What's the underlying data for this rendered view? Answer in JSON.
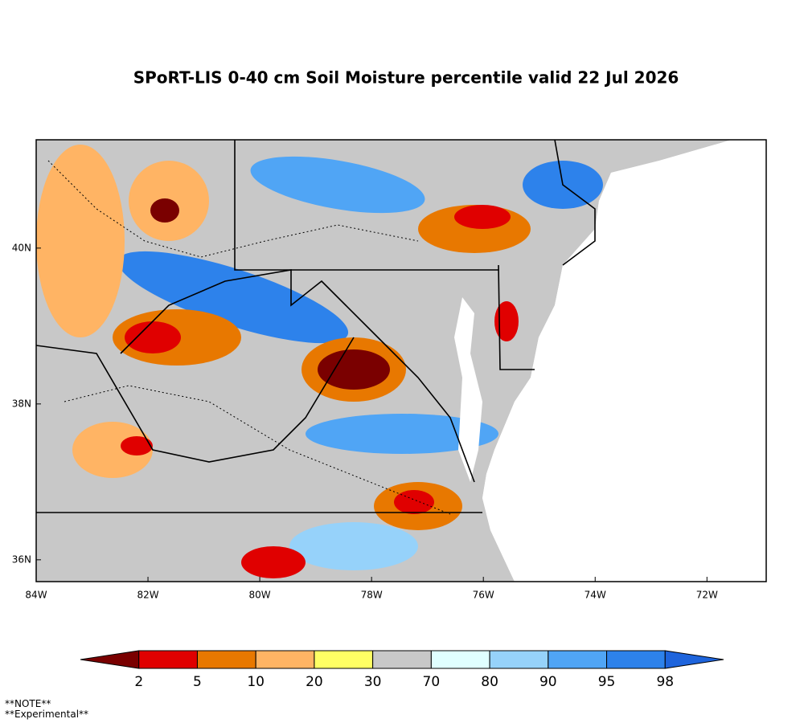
{
  "title": "SPoRT-LIS 0-40 cm Soil Moisture percentile valid 22 Jul 2026",
  "map": {
    "xlim": [
      -84,
      -70.94
    ],
    "ylim": [
      35.72,
      41.39
    ],
    "xticks": [
      {
        "value": -84,
        "label": "84W"
      },
      {
        "value": -82,
        "label": "82W"
      },
      {
        "value": -80,
        "label": "80W"
      },
      {
        "value": -78,
        "label": "78W"
      },
      {
        "value": -76,
        "label": "76W"
      },
      {
        "value": -74,
        "label": "74W"
      },
      {
        "value": -72,
        "label": "72W"
      }
    ],
    "yticks": [
      {
        "value": 36,
        "label": "36N"
      },
      {
        "value": 38,
        "label": "38N"
      },
      {
        "value": 40,
        "label": "40N"
      }
    ]
  },
  "colorbar": {
    "levels": [
      2,
      5,
      10,
      20,
      30,
      70,
      80,
      90,
      95,
      98
    ],
    "colors": [
      "#7a0000",
      "#e00000",
      "#e87800",
      "#ffb464",
      "#ffff64",
      "#c8c8c8",
      "#e0ffff",
      "#96d2fa",
      "#50a5f5",
      "#2d82eb",
      "#1e64dc"
    ]
  },
  "notes": [
    "**NOTE**",
    "**Experimental**"
  ]
}
